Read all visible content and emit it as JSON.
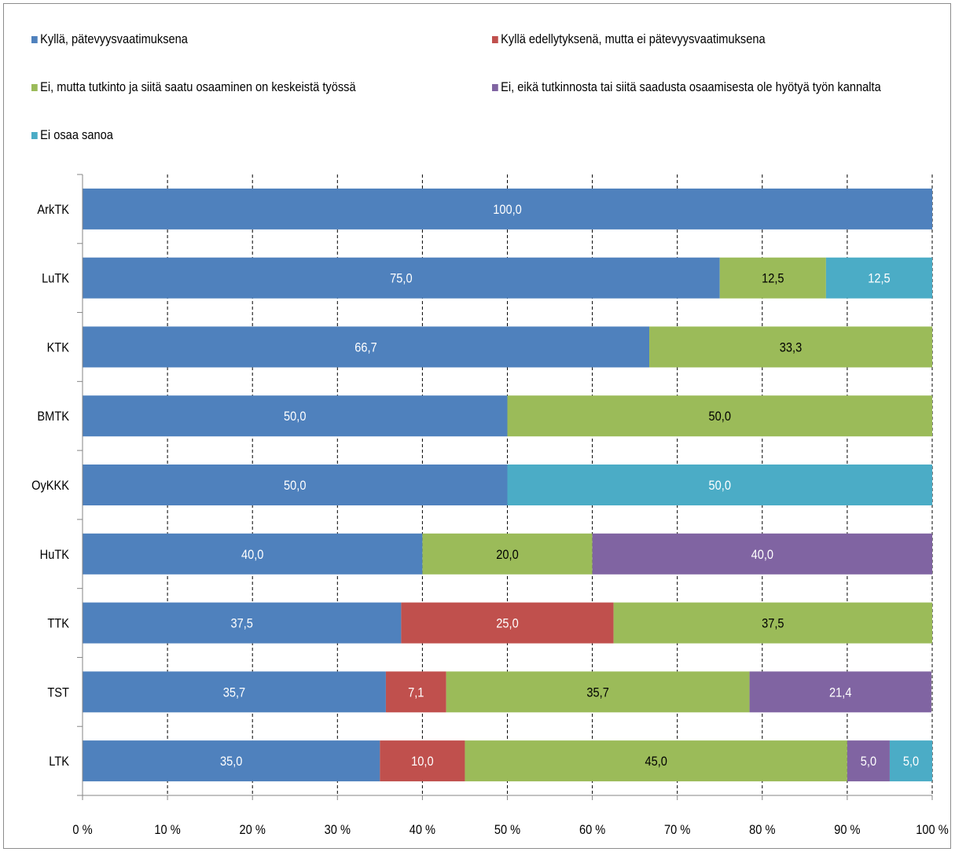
{
  "chart_data": {
    "type": "bar",
    "orientation": "horizontal",
    "stacked": "percent",
    "categories": [
      "ArkTK",
      "LuTK",
      "KTK",
      "BMTK",
      "OyKKK",
      "HuTK",
      "TTK",
      "TST",
      "LTK"
    ],
    "series": [
      {
        "name": "Kyllä, pätevyysvaatimuksena",
        "color": "#4f81bd",
        "label_color": "#ffffff",
        "values": [
          100.0,
          75.0,
          66.7,
          50.0,
          50.0,
          40.0,
          37.5,
          35.7,
          35.0
        ],
        "labels": [
          "100,0",
          "75,0",
          "66,7",
          "50,0",
          "50,0",
          "40,0",
          "37,5",
          "35,7",
          "35,0"
        ]
      },
      {
        "name": "Kyllä edellytyksenä, mutta ei pätevyysvaatimuksena",
        "color": "#c0504d",
        "label_color": "#ffffff",
        "values": [
          0,
          0,
          0,
          0,
          0,
          0,
          25.0,
          7.1,
          10.0
        ],
        "labels": [
          "",
          "",
          "",
          "",
          "",
          "",
          "25,0",
          "7,1",
          "10,0"
        ]
      },
      {
        "name": "Ei, mutta tutkinto ja siitä saatu osaaminen on keskeistä työssä",
        "color": "#9bbb59",
        "label_color": "#000000",
        "values": [
          0,
          12.5,
          33.3,
          50.0,
          0,
          20.0,
          37.5,
          35.7,
          45.0
        ],
        "labels": [
          "",
          "12,5",
          "33,3",
          "50,0",
          "",
          "20,0",
          "37,5",
          "35,7",
          "45,0"
        ]
      },
      {
        "name": "Ei, eikä tutkinnosta tai siitä saadusta osaamisesta ole hyötyä työn kannalta",
        "color": "#8064a2",
        "label_color": "#ffffff",
        "values": [
          0,
          0,
          0,
          0,
          0,
          40.0,
          0,
          21.4,
          5.0
        ],
        "labels": [
          "",
          "",
          "",
          "",
          "",
          "40,0",
          "",
          "21,4",
          "5,0"
        ]
      },
      {
        "name": "Ei osaa sanoa",
        "color": "#4bacc6",
        "label_color": "#ffffff",
        "values": [
          0,
          12.5,
          0,
          0,
          50.0,
          0,
          0,
          0,
          5.0
        ],
        "labels": [
          "",
          "12,5",
          "",
          "",
          "50,0",
          "",
          "",
          "",
          "5,0"
        ]
      }
    ],
    "x_ticks": [
      "0 %",
      "10 %",
      "20 %",
      "30 %",
      "40 %",
      "50 %",
      "60 %",
      "70 %",
      "80 %",
      "90 %",
      "100 %"
    ],
    "xlim": [
      0,
      100
    ],
    "grid": "vertical-dashed",
    "legend_position": "top"
  }
}
